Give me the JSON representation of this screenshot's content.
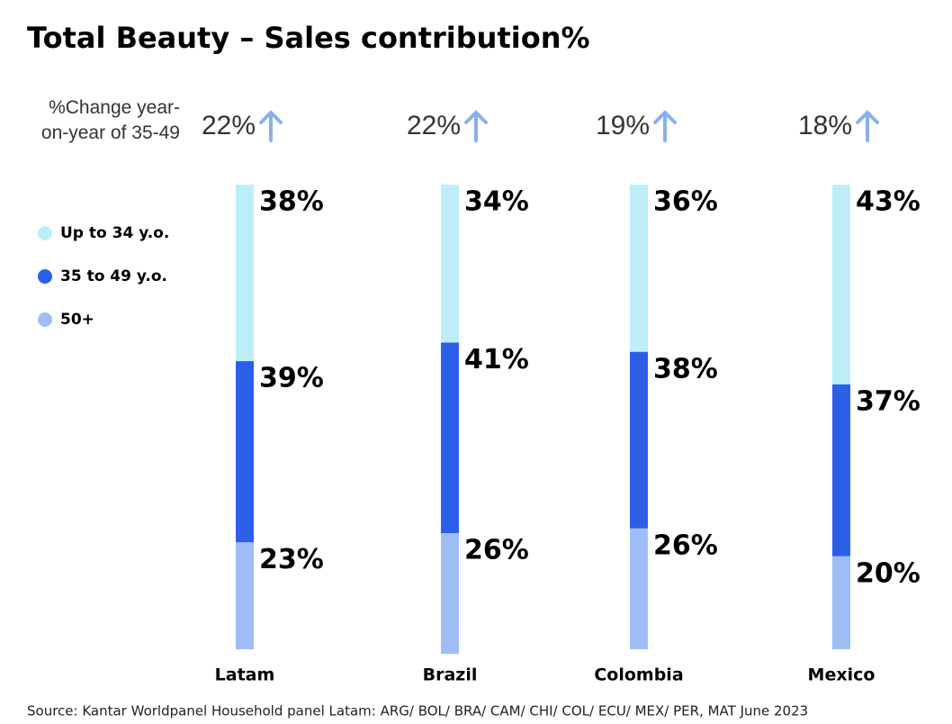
{
  "chart_data": {
    "type": "stacked_bar",
    "title": "Total Beauty – Sales contribution%",
    "categories": [
      "Latam",
      "Brazil",
      "Colombia",
      "Mexico"
    ],
    "series": [
      {
        "name": "Up to 34 y.o.",
        "color": "#bdeef8",
        "values": [
          38,
          34,
          36,
          43
        ],
        "value_labels": [
          "38%",
          "34%",
          "36%",
          "43%"
        ]
      },
      {
        "name": "35 to 49 y.o.",
        "color": "#2b5fe8",
        "values": [
          39,
          41,
          38,
          37
        ],
        "value_labels": [
          "39%",
          "41%",
          "38%",
          "37%"
        ]
      },
      {
        "name": "50+",
        "color": "#9fbef8",
        "values": [
          23,
          26,
          26,
          20
        ],
        "value_labels": [
          "23%",
          "26%",
          "26%",
          "20%"
        ]
      }
    ],
    "ylim": [
      0,
      100
    ],
    "change": {
      "label": "%Change year-on-year of 35-49",
      "values": [
        22,
        22,
        19,
        18
      ],
      "value_labels": [
        "22%",
        "22%",
        "19%",
        "18%"
      ],
      "color": "#8ab0f0"
    },
    "source": "Source: Kantar Worldpanel Household panel Latam: ARG/ BOL/ BRA/ CAM/ CHI/ COL/ ECU/ MEX/ PER, MAT June 2023"
  }
}
